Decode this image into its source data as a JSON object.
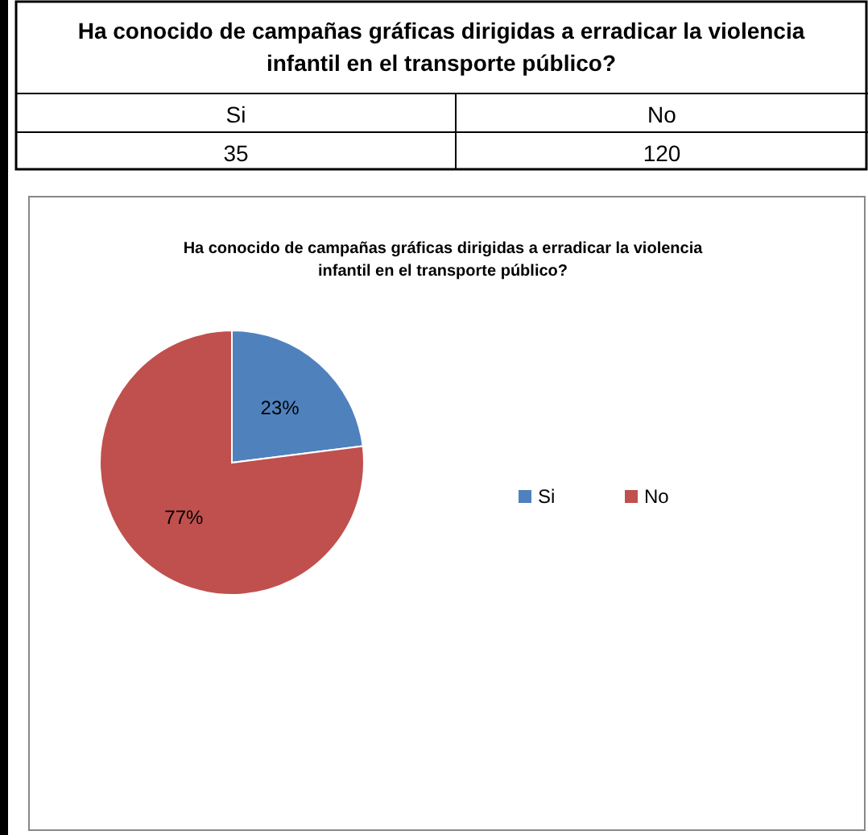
{
  "chart_data": {
    "type": "pie",
    "title": "Ha conocido de campañas gráficas dirigidas a erradicar la violencia infantil en el transporte público?",
    "annotations": [
      "Ha conocido de campañas gráficas dirigidas a erradicar la violencia infantil en el transporte público?",
      "35",
      "120"
    ],
    "categories": [
      "Si",
      "No"
    ],
    "values": [
      23,
      77
    ],
    "colors": [
      "#4f81bd",
      "#c0504d"
    ],
    "value_labels": [
      "23%",
      "77%"
    ],
    "legend": "right"
  }
}
